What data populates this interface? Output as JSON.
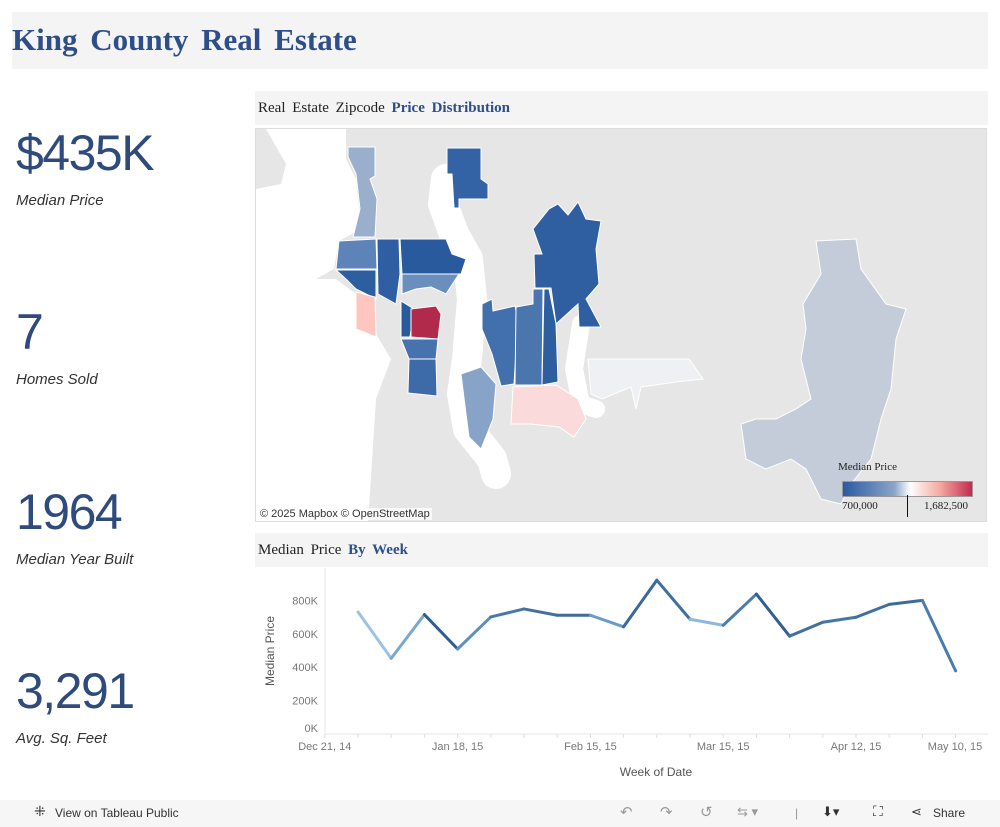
{
  "header": {
    "title": "King County Real Estate"
  },
  "kpis": [
    {
      "value": "$435K",
      "label": "Median Price"
    },
    {
      "value": "7",
      "label": "Homes Sold"
    },
    {
      "value": "1964",
      "label": "Median Year Built"
    },
    {
      "value": "3,291",
      "label": "Avg. Sq. Feet"
    }
  ],
  "map": {
    "title_plain": "Real Estate Zipcode",
    "title_bold": "Price Distribution",
    "attribution": "© 2025 Mapbox  © OpenStreetMap",
    "legend": {
      "title": "Median Price",
      "min": "700,000",
      "max": "1,682,500"
    },
    "colors": {
      "low": "#2a5aa3",
      "mid": "#ffffff",
      "high": "#c22a4e"
    }
  },
  "chart_data": {
    "type": "line",
    "title_plain": "Median Price",
    "title_bold": "By Week",
    "xlabel": "Week of Date",
    "ylabel": "Median Price",
    "x": [
      "Dec 28, 14",
      "Jan 4, 15",
      "Jan 11, 15",
      "Jan 18, 15",
      "Jan 25, 15",
      "Feb 1, 15",
      "Feb 8, 15",
      "Feb 15, 15",
      "Feb 22, 15",
      "Mar 1, 15",
      "Mar 8, 15",
      "Mar 15, 15",
      "Mar 22, 15",
      "Mar 29, 15",
      "Apr 5, 15",
      "Apr 12, 15",
      "Apr 19, 15",
      "Apr 26, 15",
      "May 3, 15"
    ],
    "values": [
      731000,
      453000,
      715000,
      509000,
      701000,
      749000,
      711000,
      711000,
      642000,
      921000,
      687000,
      651000,
      838000,
      586000,
      669000,
      699000,
      776000,
      800000,
      378000
    ],
    "yticks": [
      "0K",
      "200K",
      "400K",
      "600K",
      "800K"
    ],
    "ylim": [
      0,
      900000
    ],
    "xtick_labels": [
      "Dec 21, 14",
      "Jan 18, 15",
      "Feb 15, 15",
      "Mar 15, 15",
      "Apr 12, 15",
      "May 10, 15"
    ],
    "grid": false
  },
  "footer": {
    "view": "View on Tableau Public",
    "share": "Share"
  }
}
